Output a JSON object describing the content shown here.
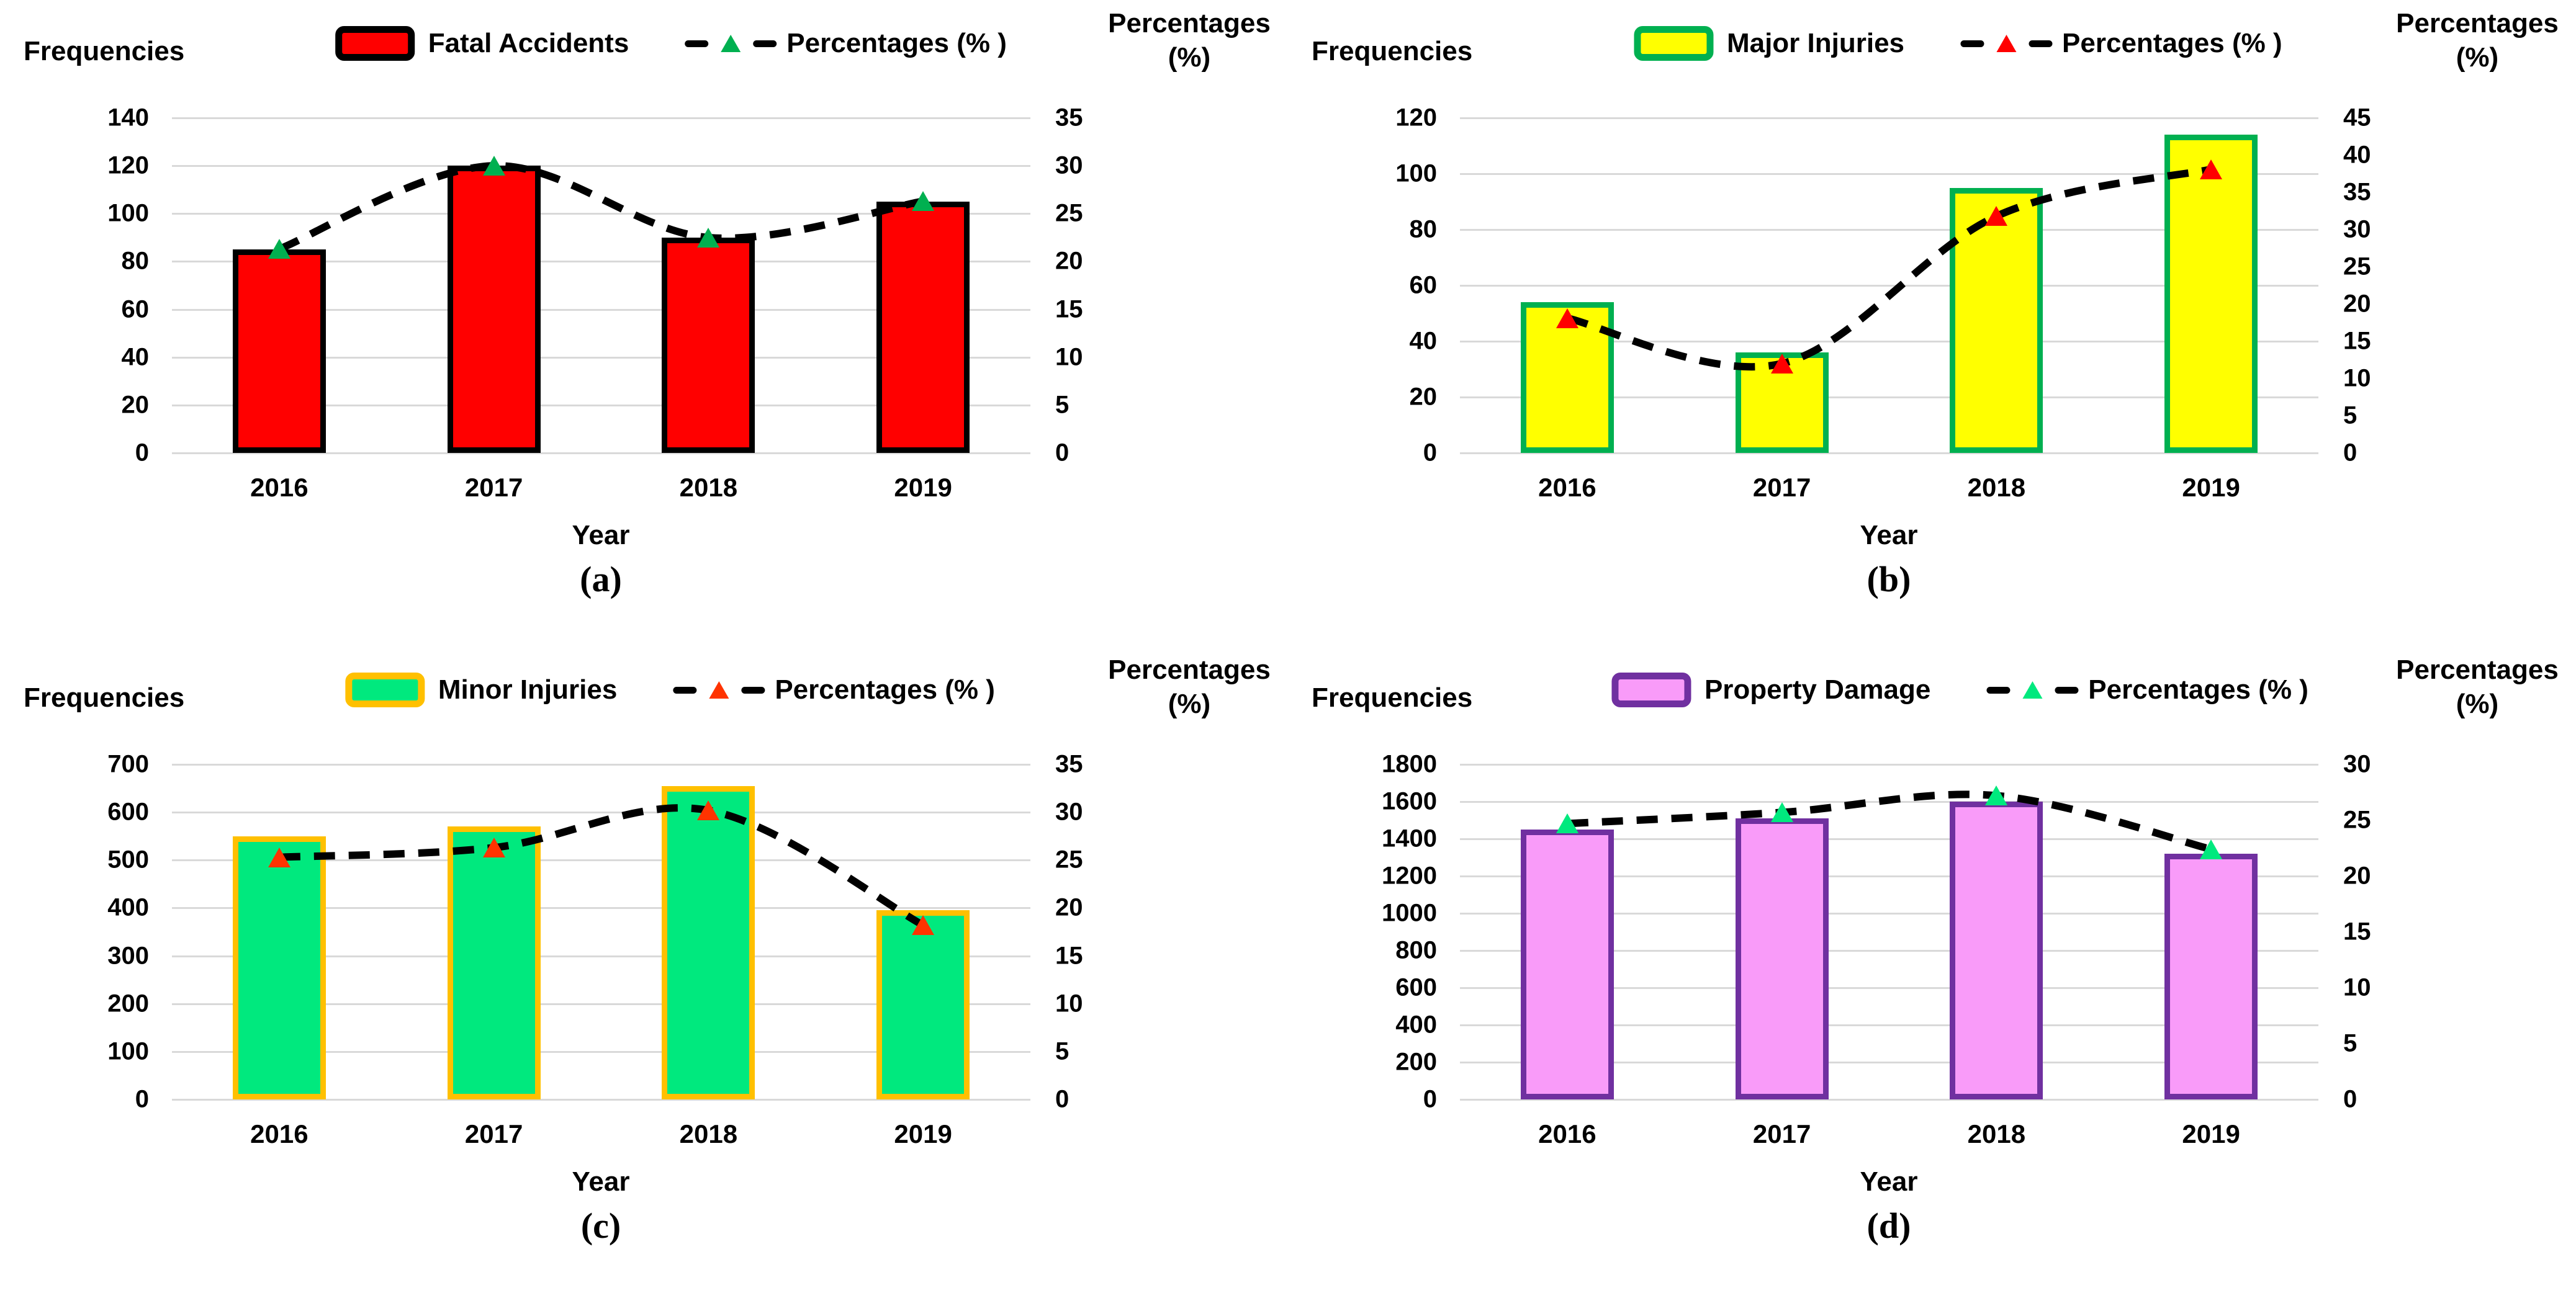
{
  "figure_caption_labels": [
    "(a)",
    "(b)",
    "(c)",
    "(d)"
  ],
  "chart_data": [
    {
      "id": "a",
      "type": "bar+line-dual-axis",
      "caption": "(a)",
      "categories": [
        "2016",
        "2017",
        "2018",
        "2019"
      ],
      "x_axis_title": "Year",
      "left_axis": {
        "title": "Frequencies",
        "min": 0,
        "max": 140,
        "step": 20,
        "ticks": [
          140,
          120,
          100,
          80,
          60,
          40,
          20,
          0
        ]
      },
      "right_axis": {
        "title_lines": [
          "Percentages",
          "(%)"
        ],
        "min": 0,
        "max": 35,
        "step": 5,
        "ticks": [
          35,
          30,
          25,
          20,
          15,
          10,
          5,
          0
        ]
      },
      "grid": true,
      "legend_position": "top",
      "bar_series": {
        "name": "Fatal Accidents",
        "values": [
          85,
          120,
          90,
          105
        ],
        "fill": "#FF0000",
        "border": "#000000"
      },
      "line_series": {
        "name": "Percentages (% )",
        "values": [
          21.3,
          30.0,
          22.5,
          26.3
        ],
        "marker_color": "#00B050",
        "line_color": "#000000",
        "style": "dashed"
      }
    },
    {
      "id": "b",
      "type": "bar+line-dual-axis",
      "caption": "(b)",
      "categories": [
        "2016",
        "2017",
        "2018",
        "2019"
      ],
      "x_axis_title": "Year",
      "left_axis": {
        "title": "Frequencies",
        "min": 0,
        "max": 120,
        "step": 20,
        "ticks": [
          120,
          100,
          80,
          60,
          40,
          20,
          0
        ]
      },
      "right_axis": {
        "title_lines": [
          "Percentages",
          "(%)"
        ],
        "min": 0,
        "max": 45,
        "step": 5,
        "ticks": [
          45,
          40,
          35,
          30,
          25,
          20,
          15,
          10,
          5,
          0
        ]
      },
      "grid": true,
      "legend_position": "top",
      "bar_series": {
        "name": "Major Injuries",
        "values": [
          54,
          36,
          95,
          114
        ],
        "fill": "#FFFF00",
        "border": "#00B050"
      },
      "line_series": {
        "name": "Percentages (% )",
        "values": [
          18.1,
          12.0,
          31.8,
          38.1
        ],
        "marker_color": "#FF0000",
        "line_color": "#000000",
        "style": "dashed"
      }
    },
    {
      "id": "c",
      "type": "bar+line-dual-axis",
      "caption": "(c)",
      "categories": [
        "2016",
        "2017",
        "2018",
        "2019"
      ],
      "x_axis_title": "Year",
      "left_axis": {
        "title": "Frequencies",
        "min": 0,
        "max": 700,
        "step": 100,
        "ticks": [
          700,
          600,
          500,
          400,
          300,
          200,
          100,
          0
        ]
      },
      "right_axis": {
        "title_lines": [
          "Percentages",
          "(%)"
        ],
        "min": 0,
        "max": 35,
        "step": 5,
        "ticks": [
          35,
          30,
          25,
          20,
          15,
          10,
          5,
          0
        ]
      },
      "grid": true,
      "legend_position": "top",
      "bar_series": {
        "name": "Minor Injuries",
        "values": [
          550,
          570,
          655,
          395
        ],
        "fill": "#00E97E",
        "border": "#FFC000"
      },
      "line_series": {
        "name": "Percentages (% )",
        "values": [
          25.3,
          26.3,
          30.2,
          18.2
        ],
        "marker_color": "#FF3300",
        "line_color": "#000000",
        "style": "dashed"
      }
    },
    {
      "id": "d",
      "type": "bar+line-dual-axis",
      "caption": "(d)",
      "categories": [
        "2016",
        "2017",
        "2018",
        "2019"
      ],
      "x_axis_title": "Year",
      "left_axis": {
        "title": "Frequencies",
        "min": 0,
        "max": 1800,
        "step": 200,
        "ticks": [
          1800,
          1600,
          1400,
          1200,
          1000,
          800,
          600,
          400,
          200,
          0
        ]
      },
      "right_axis": {
        "title_lines": [
          "Percentages",
          "(%)"
        ],
        "min": 0,
        "max": 30,
        "step": 5,
        "ticks": [
          30,
          25,
          20,
          15,
          10,
          5,
          0
        ]
      },
      "grid": true,
      "legend_position": "top",
      "bar_series": {
        "name": "Property Damage",
        "values": [
          1450,
          1510,
          1600,
          1320
        ],
        "fill": "#F99BF9",
        "border": "#7030A0"
      },
      "line_series": {
        "name": "Percentages (% )",
        "values": [
          24.7,
          25.7,
          27.2,
          22.4
        ],
        "marker_color": "#00E97E",
        "line_color": "#000000",
        "style": "dashed"
      }
    }
  ],
  "shared": {
    "gridline_color": "#D9D9D9",
    "background": "#FFFFFF",
    "text_color": "#000000"
  }
}
